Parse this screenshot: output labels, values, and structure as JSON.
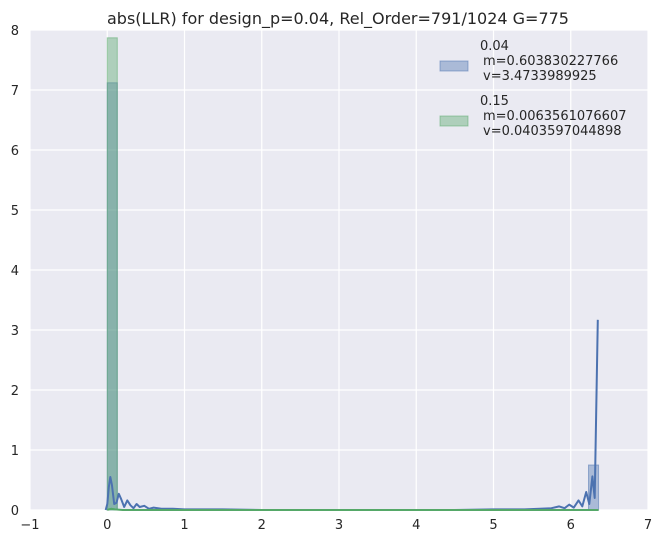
{
  "chart_data": {
    "type": "bar",
    "title": "abs(LLR) for design_p=0.04, Rel_Order=791/1024 G=775",
    "xlabel": "",
    "ylabel": "",
    "xlim": [
      -1,
      7
    ],
    "ylim": [
      0,
      8
    ],
    "x_ticks": [
      "−1",
      "0",
      "1",
      "2",
      "3",
      "4",
      "5",
      "6",
      "7"
    ],
    "y_ticks": [
      "0",
      "1",
      "2",
      "3",
      "4",
      "5",
      "6",
      "7",
      "8"
    ],
    "grid": true,
    "legend_placement": "top-right",
    "series": [
      {
        "name": "0.04",
        "legend_lines": [
          "0.04",
          "m=0.603830227766",
          "v=3.4733989925"
        ],
        "color": "#4c72b0",
        "bins": [
          {
            "x0": 0.0,
            "x1": 0.13,
            "height": 7.12
          },
          {
            "x0": 6.23,
            "x1": 6.36,
            "height": 0.75
          }
        ],
        "kde": [
          [
            -0.02,
            0.0
          ],
          [
            0.0,
            0.1
          ],
          [
            0.02,
            0.38
          ],
          [
            0.04,
            0.55
          ],
          [
            0.06,
            0.42
          ],
          [
            0.09,
            0.1
          ],
          [
            0.12,
            0.12
          ],
          [
            0.15,
            0.27
          ],
          [
            0.18,
            0.18
          ],
          [
            0.22,
            0.05
          ],
          [
            0.26,
            0.16
          ],
          [
            0.3,
            0.08
          ],
          [
            0.34,
            0.03
          ],
          [
            0.38,
            0.1
          ],
          [
            0.42,
            0.05
          ],
          [
            0.48,
            0.07
          ],
          [
            0.54,
            0.02
          ],
          [
            0.6,
            0.04
          ],
          [
            0.7,
            0.02
          ],
          [
            0.85,
            0.02
          ],
          [
            1.0,
            0.01
          ],
          [
            1.5,
            0.01
          ],
          [
            2.0,
            0.0
          ],
          [
            2.5,
            0.0
          ],
          [
            3.0,
            0.0
          ],
          [
            3.5,
            0.0
          ],
          [
            4.0,
            0.0
          ],
          [
            4.5,
            0.0
          ],
          [
            5.0,
            0.01
          ],
          [
            5.4,
            0.01
          ],
          [
            5.6,
            0.02
          ],
          [
            5.75,
            0.03
          ],
          [
            5.85,
            0.06
          ],
          [
            5.92,
            0.03
          ],
          [
            5.98,
            0.09
          ],
          [
            6.04,
            0.04
          ],
          [
            6.1,
            0.16
          ],
          [
            6.15,
            0.06
          ],
          [
            6.2,
            0.3
          ],
          [
            6.24,
            0.1
          ],
          [
            6.28,
            0.56
          ],
          [
            6.31,
            0.2
          ],
          [
            6.35,
            3.17
          ]
        ]
      },
      {
        "name": "0.15",
        "legend_lines": [
          "0.15",
          "m=0.0063561076607",
          "v=0.0403597044898"
        ],
        "color": "#55a868",
        "bins": [
          {
            "x0": 0.0,
            "x1": 0.13,
            "height": 7.87
          }
        ],
        "kde": [
          [
            0.0,
            0.0
          ],
          [
            0.02,
            0.01
          ],
          [
            0.05,
            0.02
          ],
          [
            0.1,
            0.01
          ],
          [
            0.2,
            0.0
          ],
          [
            1.0,
            0.0
          ],
          [
            3.0,
            0.0
          ],
          [
            5.0,
            0.0
          ],
          [
            6.36,
            0.0
          ]
        ]
      }
    ]
  }
}
